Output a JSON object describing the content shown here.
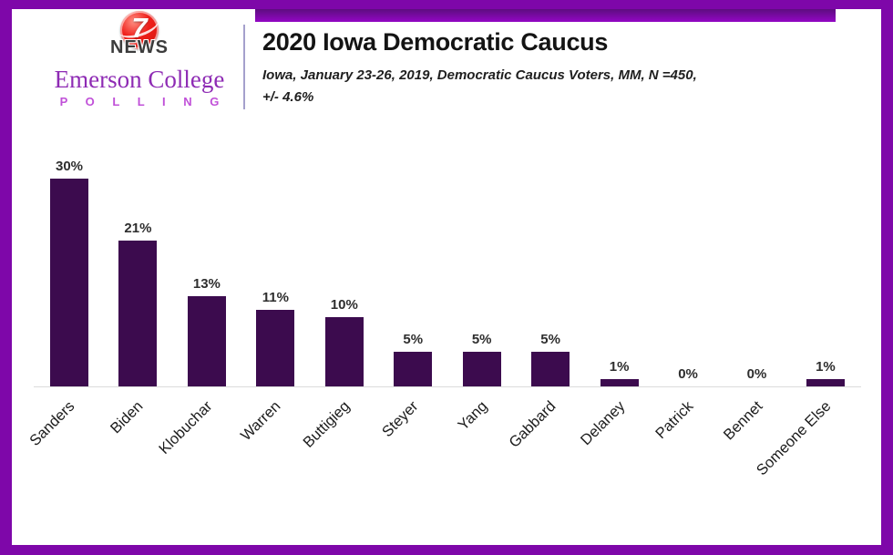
{
  "brand": {
    "station_number": "7",
    "station_name": "NEWS",
    "org_name": "Emerson College",
    "org_division": "P O L L I N G"
  },
  "header": {
    "title": "2020 Iowa Democratic Caucus",
    "subtitle_line1": "Iowa, January 23-26, 2019, Democratic Caucus Voters, MM, N =450,",
    "subtitle_line2": "+/- 4.6%"
  },
  "colors": {
    "frame": "#7E07A9",
    "header_strip_dark": "#5D0D7E",
    "header_strip_bright": "#9307C4",
    "bar": "#3C0B4E",
    "org_name": "#8E2BB4",
    "org_division": "#C050D8",
    "logo_red": "#D6170F",
    "axis_line": "#DCDCDC"
  },
  "chart_data": {
    "type": "bar",
    "title": "2020 Iowa Democratic Caucus",
    "subtitle": "Iowa, January 23-26, 2019, Democratic Caucus Voters, MM, N =450, +/- 4.6%",
    "categories": [
      "Sanders",
      "Biden",
      "Klobuchar",
      "Warren",
      "Buttigieg",
      "Steyer",
      "Yang",
      "Gabbard",
      "Delaney",
      "Patrick",
      "Bennet",
      "Someone Else"
    ],
    "values": [
      30,
      21,
      13,
      11,
      10,
      5,
      5,
      5,
      1,
      0,
      0,
      1
    ],
    "value_labels": [
      "30%",
      "21%",
      "13%",
      "11%",
      "10%",
      "5%",
      "5%",
      "5%",
      "1%",
      "0%",
      "0%",
      "1%"
    ],
    "unit": "percent",
    "xlabel": "",
    "ylabel": "",
    "ylim": [
      0,
      32
    ],
    "grid": false,
    "legend": "none",
    "bar_color": "#3C0B4E",
    "value_label_position": "above",
    "category_label_rotation_deg": 45
  }
}
